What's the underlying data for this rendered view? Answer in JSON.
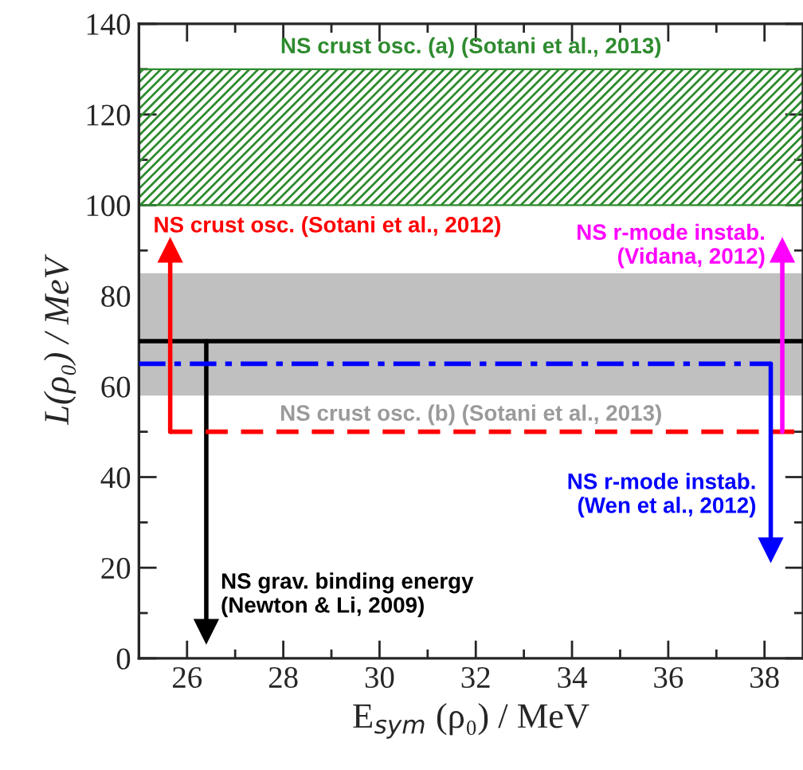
{
  "chart_data": {
    "type": "line",
    "xlabel": "E$_{sym}$ (ρ₀) / MeV",
    "ylabel": "L(ρ₀) / MeV",
    "xlim": [
      25,
      38.8
    ],
    "xticks": [
      26,
      28,
      30,
      32,
      34,
      36,
      38
    ],
    "ylim": [
      0,
      140
    ],
    "yticks": [
      0,
      20,
      40,
      60,
      80,
      100,
      120,
      140
    ],
    "bands": [
      {
        "axis": "y",
        "from": 100,
        "to": 130,
        "label": "NS crust osc. (a) (Sotani et al., 2013)",
        "color": "#2e8b2e"
      },
      {
        "axis": "y",
        "from": 58,
        "to": 85,
        "label": "NS crust osc. (b) (Sotani et al., 2013)",
        "color": "#c0c0c0"
      }
    ],
    "series": [
      {
        "color": "#000000",
        "x": [
          25,
          38.8
        ],
        "values": [
          70,
          70
        ],
        "line_style": "solid",
        "marker": "none"
      },
      {
        "name": "NS grav. binding energy\n(Newton & Li, 2009)",
        "color": "#000000",
        "x": [
          26.4,
          26.4
        ],
        "values": [
          70,
          6
        ],
        "line_style": "solid",
        "marker": "triangle"
      },
      {
        "color": "#ff0000",
        "x": [
          25.65,
          38.8
        ],
        "values": [
          50,
          50
        ],
        "line_style": "dashed",
        "marker": "none"
      },
      {
        "name": "NS crust osc. (Sotani et al., 2012)",
        "color": "#ff0000",
        "x": [
          25.65,
          25.65
        ],
        "values": [
          50,
          90
        ],
        "line_style": "solid",
        "marker": "triangle"
      },
      {
        "color": "#0000ff",
        "x": [
          25,
          38.13
        ],
        "values": [
          65,
          65
        ],
        "line_style": "dashdot",
        "marker": "none"
      },
      {
        "name": "NS r-mode instab.\n(Wen et al., 2012)",
        "color": "#0000ff",
        "x": [
          38.13,
          38.13
        ],
        "values": [
          65,
          24
        ],
        "line_style": "solid",
        "marker": "triangle"
      },
      {
        "name": "NS r-mode instab.\n(Vidana, 2012)",
        "color": "#ff00ff",
        "x": [
          38.37,
          38.37
        ],
        "values": [
          50,
          90
        ],
        "line_style": "solid",
        "marker": "triangle"
      }
    ]
  }
}
